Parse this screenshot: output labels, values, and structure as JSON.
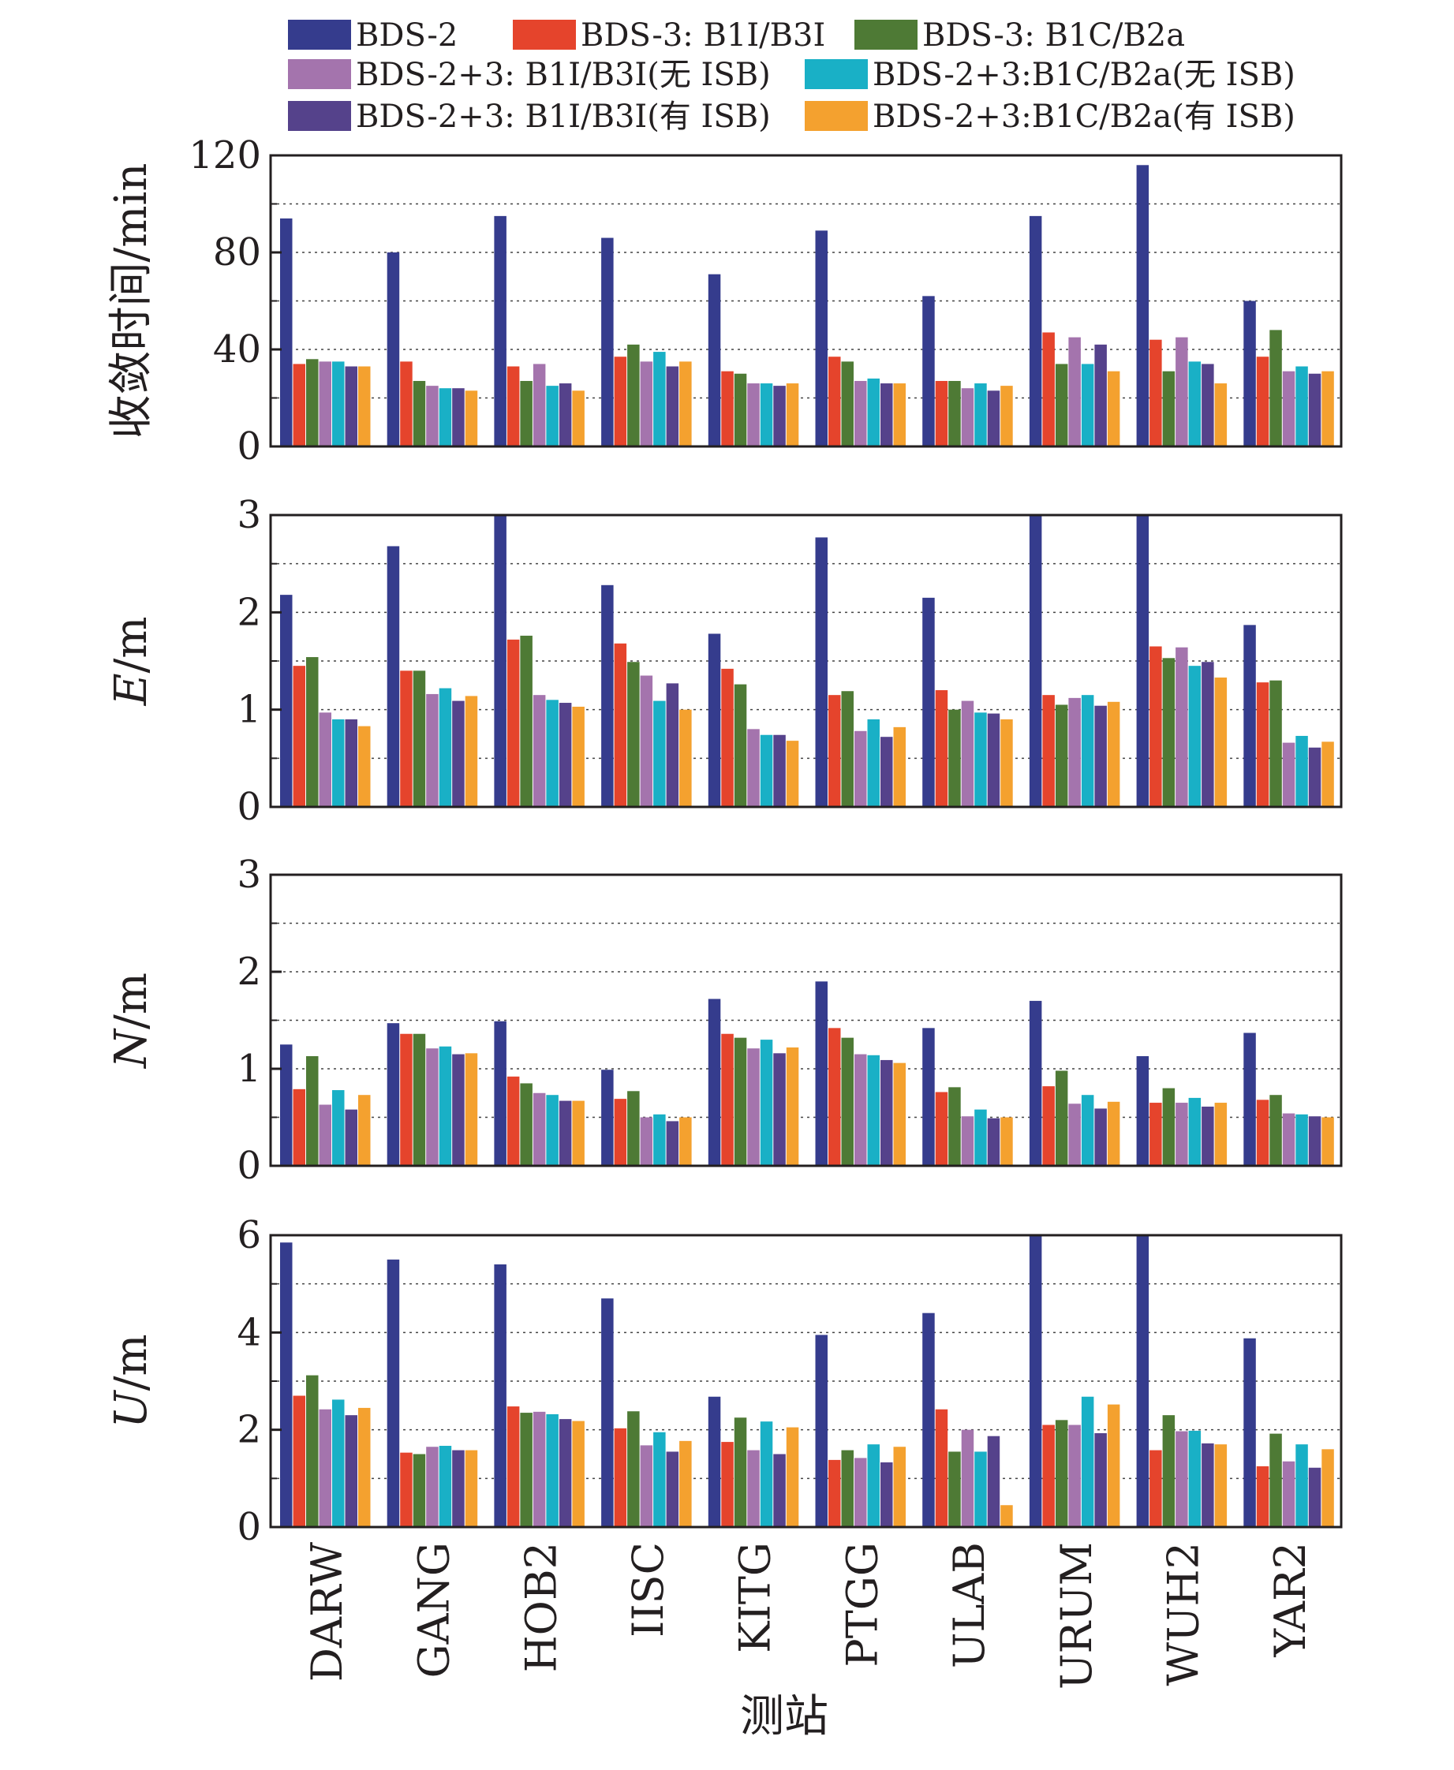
{
  "chart_data": {
    "type": "bar",
    "xlabel": "测站",
    "categories": [
      "DARW",
      "GANG",
      "HOB2",
      "IISC",
      "KITG",
      "PTGG",
      "ULAB",
      "URUM",
      "WUH2",
      "YAR2"
    ],
    "legend": {
      "placement": "top",
      "entries": [
        {
          "name": "BDS-2",
          "color": "#353c8d"
        },
        {
          "name": "BDS-3: B1I/B3I",
          "color": "#e5442c"
        },
        {
          "name": "BDS-3: B1C/B2a",
          "color": "#4e7a35"
        },
        {
          "name": "BDS-2+3: B1I/B3I(无 ISB)",
          "color": "#a474ad"
        },
        {
          "name": "BDS-2+3:B1C/B2a(无 ISB)",
          "color": "#19b0c6"
        },
        {
          "name": "BDS-2+3: B1I/B3I(有 ISB)",
          "color": "#55428b"
        },
        {
          "name": "BDS-2+3:B1C/B2a(有 ISB)",
          "color": "#f4a12f"
        }
      ]
    },
    "panels": [
      {
        "ylabel": "收敛时间/min",
        "ylim": [
          0,
          120
        ],
        "yticks": [
          0,
          40,
          80,
          120
        ],
        "grid": "dotted horizontal",
        "series": [
          {
            "name": "BDS-2",
            "values": [
              94,
              80,
              95,
              86,
              71,
              89,
              62,
              95,
              116,
              60
            ]
          },
          {
            "name": "BDS-3: B1I/B3I",
            "values": [
              34,
              35,
              33,
              37,
              31,
              37,
              27,
              47,
              44,
              37
            ]
          },
          {
            "name": "BDS-3: B1C/B2a",
            "values": [
              36,
              27,
              27,
              42,
              30,
              35,
              27,
              34,
              31,
              48
            ]
          },
          {
            "name": "BDS-2+3: B1I/B3I(无 ISB)",
            "values": [
              35,
              25,
              34,
              35,
              26,
              27,
              24,
              45,
              45,
              31
            ]
          },
          {
            "name": "BDS-2+3:B1C/B2a(无 ISB)",
            "values": [
              35,
              24,
              25,
              39,
              26,
              28,
              26,
              34,
              35,
              33
            ]
          },
          {
            "name": "BDS-2+3: B1I/B3I(有 ISB)",
            "values": [
              33,
              24,
              26,
              33,
              25,
              26,
              23,
              42,
              34,
              30
            ]
          },
          {
            "name": "BDS-2+3:B1C/B2a(有 ISB)",
            "values": [
              33,
              23,
              23,
              35,
              26,
              26,
              25,
              31,
              26,
              31
            ]
          }
        ]
      },
      {
        "ylabel": "E/m",
        "ylabel_italic": "E",
        "ylabel_rest": "/m",
        "ylim": [
          0,
          3
        ],
        "yticks": [
          0,
          1,
          2,
          3
        ],
        "grid": "dotted horizontal",
        "series": [
          {
            "name": "BDS-2",
            "values": [
              2.18,
              2.68,
              3.0,
              2.28,
              1.78,
              2.77,
              2.15,
              3.0,
              3.0,
              1.87
            ]
          },
          {
            "name": "BDS-3: B1I/B3I",
            "values": [
              1.45,
              1.4,
              1.72,
              1.68,
              1.42,
              1.15,
              1.2,
              1.15,
              1.65,
              1.28
            ]
          },
          {
            "name": "BDS-3: B1C/B2a",
            "values": [
              1.54,
              1.4,
              1.76,
              1.49,
              1.26,
              1.19,
              1.0,
              1.05,
              1.53,
              1.3
            ]
          },
          {
            "name": "BDS-2+3: B1I/B3I(无 ISB)",
            "values": [
              0.97,
              1.16,
              1.15,
              1.35,
              0.8,
              0.78,
              1.09,
              1.12,
              1.64,
              0.66
            ]
          },
          {
            "name": "BDS-2+3:B1C/B2a(无 ISB)",
            "values": [
              0.9,
              1.22,
              1.1,
              1.09,
              0.74,
              0.9,
              0.97,
              1.15,
              1.45,
              0.73
            ]
          },
          {
            "name": "BDS-2+3: B1I/B3I(有 ISB)",
            "values": [
              0.9,
              1.09,
              1.07,
              1.27,
              0.74,
              0.72,
              0.96,
              1.04,
              1.49,
              0.61
            ]
          },
          {
            "name": "BDS-2+3:B1C/B2a(有 ISB)",
            "values": [
              0.83,
              1.14,
              1.03,
              1.0,
              0.68,
              0.82,
              0.9,
              1.08,
              1.33,
              0.67
            ]
          }
        ]
      },
      {
        "ylabel": "N/m",
        "ylabel_italic": "N",
        "ylabel_rest": "/m",
        "ylim": [
          0,
          3
        ],
        "yticks": [
          0,
          1,
          2,
          3
        ],
        "grid": "dotted horizontal",
        "series": [
          {
            "name": "BDS-2",
            "values": [
              1.25,
              1.47,
              1.49,
              0.99,
              1.72,
              1.9,
              1.42,
              1.7,
              1.13,
              1.37
            ]
          },
          {
            "name": "BDS-3: B1I/B3I",
            "values": [
              0.79,
              1.36,
              0.92,
              0.69,
              1.36,
              1.42,
              0.76,
              0.82,
              0.65,
              0.68
            ]
          },
          {
            "name": "BDS-3: B1C/B2a",
            "values": [
              1.13,
              1.36,
              0.85,
              0.77,
              1.32,
              1.32,
              0.81,
              0.98,
              0.8,
              0.73
            ]
          },
          {
            "name": "BDS-2+3: B1I/B3I(无 ISB)",
            "values": [
              0.63,
              1.21,
              0.75,
              0.5,
              1.21,
              1.15,
              0.51,
              0.64,
              0.65,
              0.54
            ]
          },
          {
            "name": "BDS-2+3:B1C/B2a(无 ISB)",
            "values": [
              0.78,
              1.23,
              0.73,
              0.53,
              1.3,
              1.14,
              0.58,
              0.73,
              0.7,
              0.53
            ]
          },
          {
            "name": "BDS-2+3: B1I/B3I(有 ISB)",
            "values": [
              0.58,
              1.15,
              0.67,
              0.46,
              1.16,
              1.09,
              0.49,
              0.59,
              0.61,
              0.51
            ]
          },
          {
            "name": "BDS-2+3:B1C/B2a(有 ISB)",
            "values": [
              0.73,
              1.16,
              0.67,
              0.5,
              1.22,
              1.06,
              0.5,
              0.66,
              0.65,
              0.5
            ]
          }
        ]
      },
      {
        "ylabel": "U/m",
        "ylabel_italic": "U",
        "ylabel_rest": "/m",
        "ylim": [
          0,
          6
        ],
        "yticks": [
          0,
          2,
          4,
          6
        ],
        "grid": "dotted horizontal",
        "series": [
          {
            "name": "BDS-2",
            "values": [
              5.85,
              5.5,
              5.4,
              4.7,
              2.68,
              3.95,
              4.4,
              6.0,
              6.0,
              3.88
            ]
          },
          {
            "name": "BDS-3: B1I/B3I",
            "values": [
              2.7,
              1.53,
              2.48,
              2.03,
              1.75,
              1.38,
              2.42,
              2.1,
              1.58,
              1.25
            ]
          },
          {
            "name": "BDS-3: B1C/B2a",
            "values": [
              3.12,
              1.5,
              2.35,
              2.38,
              2.25,
              1.58,
              1.55,
              2.2,
              2.3,
              1.92
            ]
          },
          {
            "name": "BDS-2+3: B1I/B3I(无 ISB)",
            "values": [
              2.42,
              1.65,
              2.37,
              1.68,
              1.58,
              1.42,
              2.0,
              2.1,
              1.97,
              1.35
            ]
          },
          {
            "name": "BDS-2+3:B1C/B2a(无 ISB)",
            "values": [
              2.62,
              1.67,
              2.32,
              1.95,
              2.17,
              1.7,
              1.55,
              2.68,
              1.98,
              1.7
            ]
          },
          {
            "name": "BDS-2+3: B1I/B3I(有 ISB)",
            "values": [
              2.3,
              1.58,
              2.22,
              1.55,
              1.5,
              1.33,
              1.87,
              1.93,
              1.72,
              1.22
            ]
          },
          {
            "name": "BDS-2+3:B1C/B2a(有 ISB)",
            "values": [
              2.45,
              1.58,
              2.18,
              1.77,
              2.05,
              1.65,
              0.45,
              2.52,
              1.7,
              1.6
            ]
          }
        ]
      }
    ]
  }
}
